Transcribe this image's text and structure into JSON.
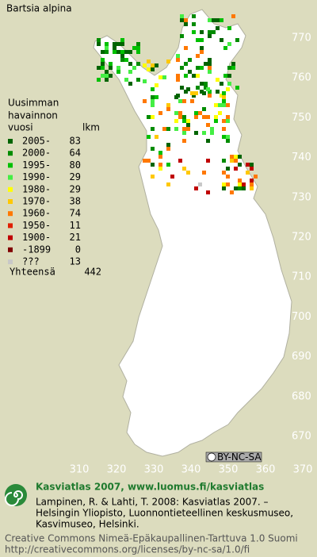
{
  "title": "Bartsia alpina",
  "legend": {
    "heading": [
      "Uusimman",
      "havainnon",
      "vuosi"
    ],
    "count_heading": "lkm",
    "items": [
      {
        "label": "2005-",
        "count": 83,
        "color": "#006400"
      },
      {
        "label": "2000-",
        "count": 64,
        "color": "#008c00"
      },
      {
        "label": "1995-",
        "count": 80,
        "color": "#00c000"
      },
      {
        "label": "1990-",
        "count": 29,
        "color": "#44ee44"
      },
      {
        "label": "1980-",
        "count": 29,
        "color": "#ffff00"
      },
      {
        "label": "1970-",
        "count": 38,
        "color": "#ffc800"
      },
      {
        "label": "1960-",
        "count": 74,
        "color": "#ff7800"
      },
      {
        "label": "1950-",
        "count": 11,
        "color": "#e02000"
      },
      {
        "label": "1900-",
        "count": 21,
        "color": "#c00000"
      },
      {
        "label": "-1899",
        "count": 0,
        "color": "#800000"
      },
      {
        "label": "???",
        "count": 13,
        "color": "#c8c8c8"
      }
    ],
    "total_label": "Yhteensä",
    "total": 442
  },
  "axes": {
    "northing": [
      770,
      760,
      750,
      740,
      730,
      720,
      710,
      700,
      690,
      680,
      670
    ],
    "easting": [
      310,
      320,
      330,
      340,
      350,
      360,
      370
    ]
  },
  "badge": "BY-NC-SA",
  "footer": {
    "site": "Kasviatlas 2007, www.luomus.fi/kasviatlas",
    "citation": [
      "Lampinen, R. & Lahti, T. 2008: Kasviatlas 2007. –",
      "Helsingin Yliopisto, Luonnontieteellinen keskusmuseo,",
      "Kasvimuseo, Helsinki."
    ],
    "license": [
      "Creative Commons Nimeä-Epäkaupallinen-Tarttuva 1.0 Suomi",
      "http://creativecommons.org/licenses/by-nc-sa/1.0/fi"
    ]
  }
}
